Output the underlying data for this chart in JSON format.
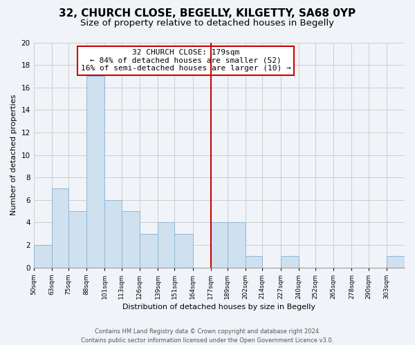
{
  "title": "32, CHURCH CLOSE, BEGELLY, KILGETTY, SA68 0YP",
  "subtitle": "Size of property relative to detached houses in Begelly",
  "xlabel": "Distribution of detached houses by size in Begelly",
  "ylabel": "Number of detached properties",
  "bin_labels": [
    "50sqm",
    "63sqm",
    "75sqm",
    "88sqm",
    "101sqm",
    "113sqm",
    "126sqm",
    "139sqm",
    "151sqm",
    "164sqm",
    "177sqm",
    "189sqm",
    "202sqm",
    "214sqm",
    "227sqm",
    "240sqm",
    "252sqm",
    "265sqm",
    "278sqm",
    "290sqm",
    "303sqm"
  ],
  "bin_edges": [
    50,
    63,
    75,
    88,
    101,
    113,
    126,
    139,
    151,
    164,
    177,
    189,
    202,
    214,
    227,
    240,
    252,
    265,
    278,
    290,
    303
  ],
  "bar_heights": [
    2,
    7,
    5,
    17,
    6,
    5,
    3,
    4,
    3,
    0,
    4,
    4,
    1,
    0,
    1,
    0,
    0,
    0,
    0,
    0,
    1
  ],
  "bar_color": "#cfe0ef",
  "bar_edgecolor": "#8fb8d4",
  "vline_x": 177,
  "vline_color": "#cc0000",
  "ylim": [
    0,
    20
  ],
  "yticks": [
    0,
    2,
    4,
    6,
    8,
    10,
    12,
    14,
    16,
    18,
    20
  ],
  "annotation_text": "32 CHURCH CLOSE: 179sqm\n← 84% of detached houses are smaller (52)\n16% of semi-detached houses are larger (10) →",
  "annotation_box_color": "#ffffff",
  "annotation_box_edgecolor": "#cc0000",
  "footer_line1": "Contains HM Land Registry data © Crown copyright and database right 2024.",
  "footer_line2": "Contains public sector information licensed under the Open Government Licence v3.0.",
  "background_color": "#f0f4f8",
  "grid_color": "#cccccc",
  "title_fontsize": 11,
  "subtitle_fontsize": 9.5,
  "annot_fontsize": 8,
  "axis_fontsize": 8
}
